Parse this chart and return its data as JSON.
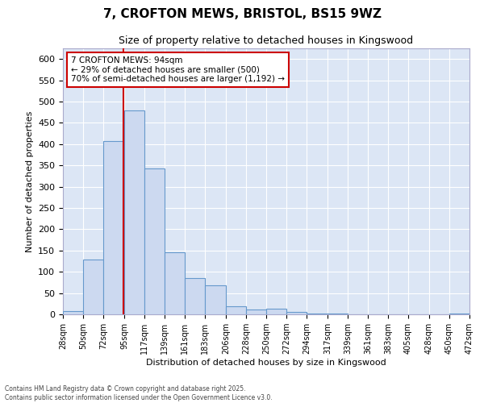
{
  "title_line1": "7, CROFTON MEWS, BRISTOL, BS15 9WZ",
  "title_line2": "Size of property relative to detached houses in Kingswood",
  "xlabel": "Distribution of detached houses by size in Kingswood",
  "ylabel": "Number of detached properties",
  "bin_edges": [
    28,
    50,
    72,
    95,
    117,
    139,
    161,
    183,
    206,
    228,
    250,
    272,
    294,
    317,
    339,
    361,
    383,
    405,
    428,
    450,
    472
  ],
  "bar_heights": [
    8,
    128,
    408,
    480,
    343,
    145,
    85,
    68,
    18,
    12,
    14,
    6,
    2,
    2,
    0,
    0,
    0,
    0,
    0,
    2
  ],
  "bar_color": "#ccd9f0",
  "bar_edge_color": "#6699cc",
  "vline_x": 94,
  "vline_color": "#cc0000",
  "ylim": [
    0,
    625
  ],
  "yticks": [
    0,
    50,
    100,
    150,
    200,
    250,
    300,
    350,
    400,
    450,
    500,
    550,
    600
  ],
  "annotation_line1": "7 CROFTON MEWS: 94sqm",
  "annotation_line2": "← 29% of detached houses are smaller (500)",
  "annotation_line3": "70% of semi-detached houses are larger (1,192) →",
  "annotation_box_color": "#ffffff",
  "annotation_box_edge_color": "#cc0000",
  "fig_background": "#ffffff",
  "plot_background": "#dce6f5",
  "grid_color": "#ffffff",
  "tick_labels": [
    "28sqm",
    "50sqm",
    "72sqm",
    "95sqm",
    "117sqm",
    "139sqm",
    "161sqm",
    "183sqm",
    "206sqm",
    "228sqm",
    "250sqm",
    "272sqm",
    "294sqm",
    "317sqm",
    "339sqm",
    "361sqm",
    "383sqm",
    "405sqm",
    "428sqm",
    "450sqm",
    "472sqm"
  ],
  "footer_line1": "Contains HM Land Registry data © Crown copyright and database right 2025.",
  "footer_line2": "Contains public sector information licensed under the Open Government Licence v3.0."
}
